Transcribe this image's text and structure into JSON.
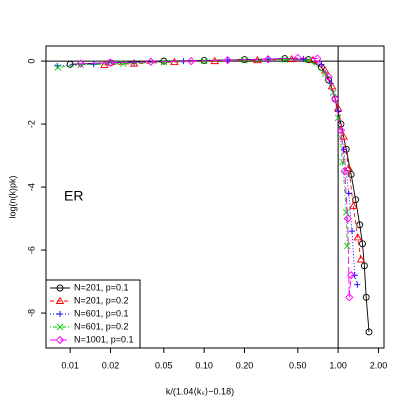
{
  "chart_data": {
    "type": "line",
    "x_label": "k/(1.04⟨kₛ⟩−0.18)",
    "y_label": "log(n(k)pk)",
    "annotation": "ER",
    "xscale": "log",
    "xlim": [
      0.0066,
      2.2
    ],
    "ylim": [
      -9.11,
      0.48
    ],
    "xticks": [
      0.01,
      0.02,
      0.05,
      {
        "value": 0.1,
        "label": "0.10"
      },
      {
        "value": 0.2,
        "label": "0.20"
      },
      {
        "value": 0.5,
        "label": "0.50"
      },
      {
        "value": 1,
        "label": "1.00"
      },
      {
        "value": 2,
        "label": "2.00"
      }
    ],
    "yticks": [
      0,
      -2,
      -4,
      -6,
      -8
    ],
    "hlines": [
      0
    ],
    "vlines": [
      1
    ],
    "legend": "bottomleft",
    "series": [
      {
        "name": "N=201, p=0.1",
        "color": "#000000",
        "marker": "circle",
        "linestyle": "solid",
        "x": [
          0.01,
          0.02,
          0.05,
          0.1,
          0.2,
          0.4,
          0.6,
          0.75,
          0.85,
          0.95,
          1.05,
          1.15,
          1.25,
          1.35,
          1.45,
          1.52,
          1.57,
          1.62,
          1.7
        ],
        "values": [
          -0.1,
          -0.05,
          0,
          0.02,
          0.05,
          0.08,
          0.05,
          -0.2,
          -0.6,
          -1.2,
          -2,
          -2.8,
          -3.6,
          -4.4,
          -5.2,
          -5.8,
          -6.5,
          -7.5,
          -8.6
        ]
      },
      {
        "name": "N=201, p=0.2",
        "color": "#ff0000",
        "marker": "triangle",
        "linestyle": "dashed",
        "x": [
          0.018,
          0.03,
          0.06,
          0.12,
          0.25,
          0.45,
          0.65,
          0.8,
          0.9,
          1.0,
          1.1,
          1.2,
          1.3,
          1.4,
          1.48
        ],
        "values": [
          -0.12,
          -0.08,
          -0.03,
          0,
          0.03,
          0.06,
          0.03,
          -0.3,
          -0.8,
          -1.5,
          -2.4,
          -3.4,
          -4.6,
          -5.6,
          -6.3
        ]
      },
      {
        "name": "N=601, p=0.1",
        "color": "#0000ff",
        "marker": "plus",
        "linestyle": "dotted",
        "x": [
          0.008,
          0.015,
          0.03,
          0.07,
          0.15,
          0.3,
          0.55,
          0.75,
          0.88,
          1.0,
          1.1,
          1.2,
          1.27,
          1.33,
          1.39
        ],
        "values": [
          -0.15,
          -0.1,
          -0.05,
          0,
          0.03,
          0.06,
          0.07,
          -0.1,
          -0.7,
          -1.6,
          -2.8,
          -4.2,
          -5.4,
          -6.8,
          -7.1
        ]
      },
      {
        "name": "N=601, p=0.2",
        "color": "#00cc00",
        "marker": "cross",
        "linestyle": "dotdash",
        "x": [
          0.0081,
          0.012,
          0.025,
          0.05,
          0.1,
          0.2,
          0.4,
          0.6,
          0.8,
          0.92,
          1.0,
          1.08,
          1.15,
          1.17
        ],
        "values": [
          -0.2,
          -0.12,
          -0.08,
          -0.03,
          0,
          0.03,
          0.05,
          0.04,
          -0.4,
          -1.0,
          -1.8,
          -3.2,
          -4.8,
          -5.87
        ]
      },
      {
        "name": "N=1001, p=0.1",
        "color": "#ff00ff",
        "marker": "diamond",
        "linestyle": "longdash",
        "x": [
          0.012,
          0.02,
          0.04,
          0.08,
          0.15,
          0.3,
          0.5,
          0.7,
          0.85,
          0.95,
          1.05,
          1.12,
          1.18,
          1.21,
          1.25
        ],
        "values": [
          -0.08,
          -0.05,
          -0.02,
          0,
          0.03,
          0.06,
          0.1,
          0.08,
          -0.5,
          -1.2,
          -2.2,
          -3.5,
          -5.0,
          -7.5,
          -6.8
        ]
      }
    ]
  }
}
